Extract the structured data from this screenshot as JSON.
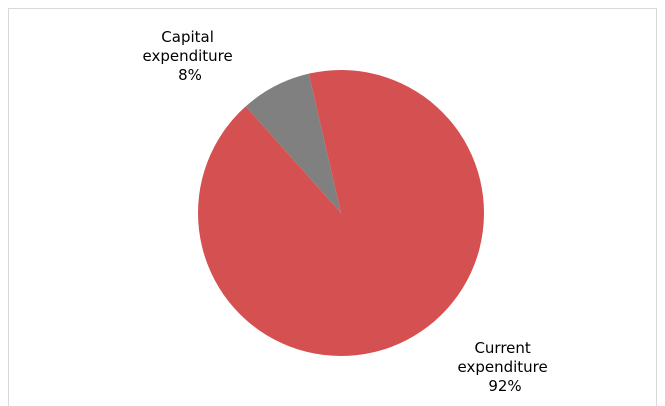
{
  "chart_data": {
    "type": "pie",
    "title": "",
    "slices": [
      {
        "label": "Capital expenditure",
        "value": 8,
        "percent_label": "8%",
        "color": "#808080"
      },
      {
        "label": "Current expenditure",
        "value": 92,
        "percent_label": "92%",
        "color": "#d55050"
      }
    ],
    "start_angle_deg": -13,
    "direction": "counterclockwise",
    "legend": "none",
    "data_labels": "outside"
  }
}
